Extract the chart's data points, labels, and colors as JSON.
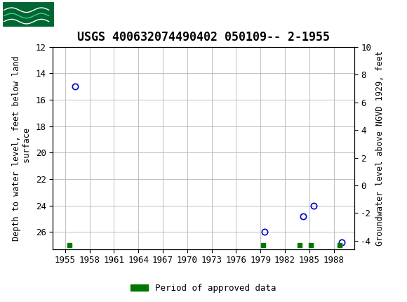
{
  "title": "USGS 400632074490402 050109-- 2-1955",
  "ylabel_left": "Depth to water level, feet below land\n surface",
  "ylabel_right": "Groundwater level above NGVD 1929, feet",
  "xlim": [
    1953.5,
    1990.5
  ],
  "ylim_left_top": 12,
  "ylim_left_bottom": 27.3,
  "ylim_right_top": 10,
  "ylim_right_bottom": -4.6,
  "xticks": [
    1955,
    1958,
    1961,
    1964,
    1967,
    1970,
    1973,
    1976,
    1979,
    1982,
    1985,
    1988
  ],
  "yticks_left": [
    12,
    14,
    16,
    18,
    20,
    22,
    24,
    26
  ],
  "yticks_right": [
    10,
    8,
    6,
    4,
    2,
    0,
    -2,
    -4
  ],
  "data_points_x": [
    1956.2,
    1979.5,
    1984.2,
    1985.5,
    1989.0
  ],
  "data_points_y": [
    15.0,
    26.0,
    24.8,
    24.0,
    26.8
  ],
  "approved_squares": [
    {
      "x": 1955.5
    },
    {
      "x": 1979.3
    },
    {
      "x": 1983.8
    },
    {
      "x": 1985.2
    },
    {
      "x": 1988.7
    }
  ],
  "approved_y": 27.0,
  "approved_color": "#007700",
  "point_color": "#0000cc",
  "grid_color": "#c0c0c0",
  "bg_color": "#ffffff",
  "header_color": "#006633",
  "title_fontsize": 12,
  "tick_fontsize": 9,
  "legend_label": "Period of approved data"
}
